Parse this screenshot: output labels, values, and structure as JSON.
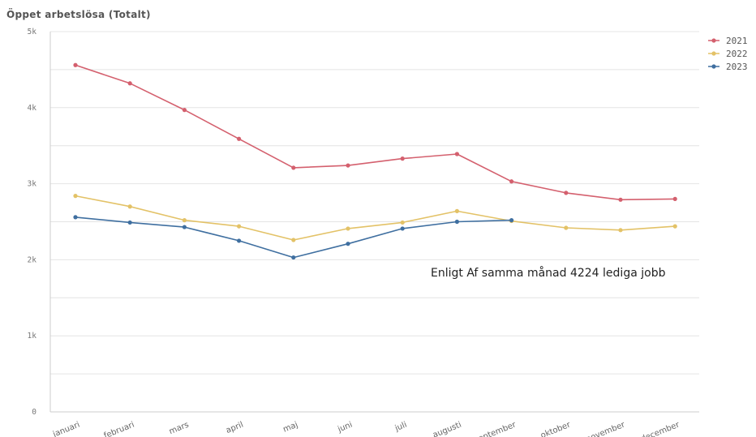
{
  "chart_data": {
    "type": "line",
    "title": "Öppet arbetslösa (Totalt)",
    "xlabel": "",
    "ylabel": "",
    "categories": [
      "januari",
      "februari",
      "mars",
      "april",
      "maj",
      "juni",
      "juli",
      "augusti",
      "september",
      "oktober",
      "november",
      "december"
    ],
    "ylim": [
      0,
      5000
    ],
    "yticks": [
      {
        "value": 0,
        "label": "0"
      },
      {
        "value": 1000,
        "label": "1k"
      },
      {
        "value": 2000,
        "label": "2k"
      },
      {
        "value": 3000,
        "label": "3k"
      },
      {
        "value": 4000,
        "label": "4k"
      },
      {
        "value": 5000,
        "label": "5k"
      }
    ],
    "grid": true,
    "legend_position": "top-right",
    "series": [
      {
        "name": "2021",
        "color": "#d4606e",
        "values": [
          4560,
          4320,
          3970,
          3590,
          3210,
          3240,
          3330,
          3390,
          3030,
          2880,
          2790,
          2800
        ]
      },
      {
        "name": "2022",
        "color": "#e3c267",
        "values": [
          2840,
          2700,
          2520,
          2440,
          2260,
          2410,
          2490,
          2640,
          2510,
          2420,
          2390,
          2440
        ]
      },
      {
        "name": "2023",
        "color": "#3f6fa0",
        "values": [
          2560,
          2490,
          2430,
          2250,
          2030,
          2210,
          2410,
          2500,
          2520,
          null,
          null,
          null
        ]
      }
    ],
    "annotation": "Enligt Af samma månad 4224 lediga jobb"
  }
}
